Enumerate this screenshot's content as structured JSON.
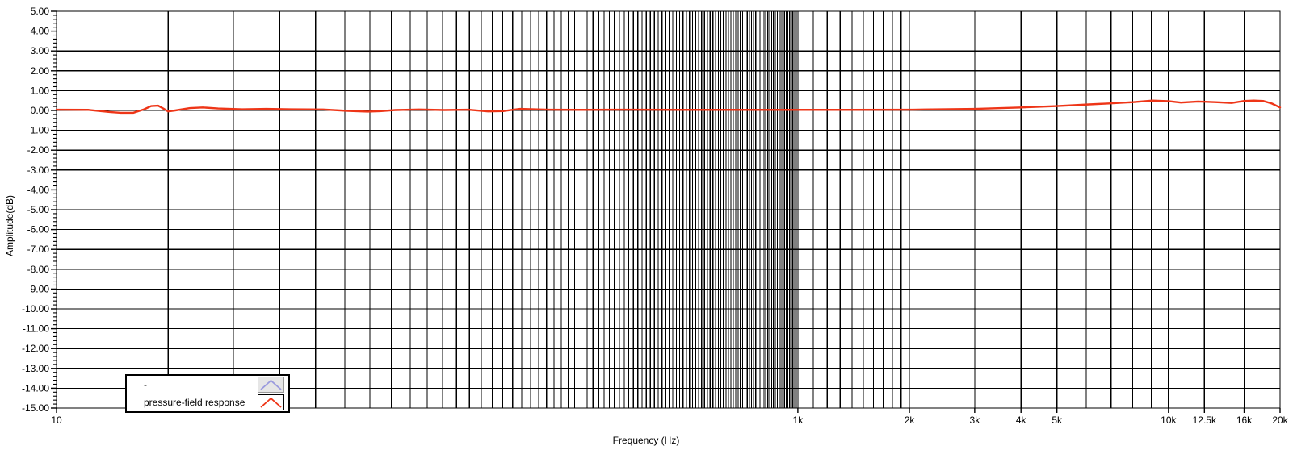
{
  "chart_data": {
    "type": "line",
    "title": "",
    "xlabel": "Frequency (Hz)",
    "ylabel": "Amplitude(dB)",
    "x_scale": "log",
    "x_range": [
      10,
      20000
    ],
    "y_range": [
      -15,
      5
    ],
    "y_major_step": 1,
    "y_minor_step": 0.2,
    "y_tick_decimals": 2,
    "grid": true,
    "legend_position": "bottom-left-inside",
    "x_tick_labels": [
      {
        "f": 10,
        "label": "10"
      },
      {
        "f": 1000,
        "label": "1k"
      },
      {
        "f": 2000,
        "label": "2k"
      },
      {
        "f": 3000,
        "label": "3k"
      },
      {
        "f": 4000,
        "label": "4k"
      },
      {
        "f": 5000,
        "label": "5k"
      },
      {
        "f": 10000,
        "label": "10k"
      },
      {
        "f": 12500,
        "label": "12.5k"
      },
      {
        "f": 16000,
        "label": "16k"
      },
      {
        "f": 20000,
        "label": "20k"
      }
    ],
    "x_gridline_segments": [
      {
        "from": 10,
        "to": 100,
        "step": 10
      },
      {
        "from": 100,
        "to": 1000,
        "step": 10
      },
      {
        "from": 1000,
        "to": 2000,
        "step": 100
      },
      {
        "from": 2000,
        "to": 10000,
        "step": 1000
      }
    ],
    "x_gridline_extra": [
      12500,
      16000,
      20000
    ],
    "colors": {
      "grid": "#000000",
      "axis": "#000000",
      "background": "#ffffff",
      "series_blue": "#9a9ade",
      "series_red": "#ee3517"
    },
    "legend": {
      "entries": [
        {
          "label": "-",
          "color": "#9a9ade",
          "sample_bg": "#e6e6e6",
          "sample_border": "#9a9a9a"
        },
        {
          "label": "pressure-field response",
          "color": "#ee3517",
          "sample_bg": "#ffffff",
          "sample_border": "#000000"
        }
      ]
    },
    "series": [
      {
        "name": "-",
        "color": "#9a9ade",
        "points": []
      },
      {
        "name": "pressure-field response",
        "color": "#ee3517",
        "points": [
          [
            10,
            0.04
          ],
          [
            12.2,
            0.03
          ],
          [
            13.9,
            -0.08
          ],
          [
            14.9,
            -0.12
          ],
          [
            16.1,
            -0.12
          ],
          [
            17.2,
            0.05
          ],
          [
            18.0,
            0.22
          ],
          [
            18.8,
            0.24
          ],
          [
            19.4,
            0.1
          ],
          [
            20.0,
            -0.05
          ],
          [
            20.9,
            0.0
          ],
          [
            22.9,
            0.12
          ],
          [
            24.8,
            0.15
          ],
          [
            27.3,
            0.1
          ],
          [
            31.7,
            0.06
          ],
          [
            36.8,
            0.08
          ],
          [
            42.9,
            0.06
          ],
          [
            52.4,
            0.05
          ],
          [
            61,
            -0.02
          ],
          [
            69,
            -0.06
          ],
          [
            74.5,
            -0.04
          ],
          [
            82,
            0.02
          ],
          [
            95,
            0.05
          ],
          [
            111,
            0.02
          ],
          [
            129,
            0.04
          ],
          [
            146,
            -0.05
          ],
          [
            161,
            -0.03
          ],
          [
            178,
            0.08
          ],
          [
            213,
            0.04
          ],
          [
            261,
            0.03
          ],
          [
            352,
            0.04
          ],
          [
            500,
            0.03
          ],
          [
            824,
            0.03
          ],
          [
            1365,
            0.03
          ],
          [
            2043,
            0.04
          ],
          [
            3000,
            0.08
          ],
          [
            4000,
            0.15
          ],
          [
            5000,
            0.22
          ],
          [
            6030,
            0.3
          ],
          [
            7000,
            0.36
          ],
          [
            8020,
            0.42
          ],
          [
            9050,
            0.5
          ],
          [
            10000,
            0.47
          ],
          [
            10800,
            0.4
          ],
          [
            12000,
            0.45
          ],
          [
            12520,
            0.44
          ],
          [
            13400,
            0.42
          ],
          [
            14800,
            0.38
          ],
          [
            16000,
            0.48
          ],
          [
            17000,
            0.5
          ],
          [
            18000,
            0.48
          ],
          [
            19000,
            0.35
          ],
          [
            20000,
            0.15
          ]
        ]
      }
    ]
  }
}
